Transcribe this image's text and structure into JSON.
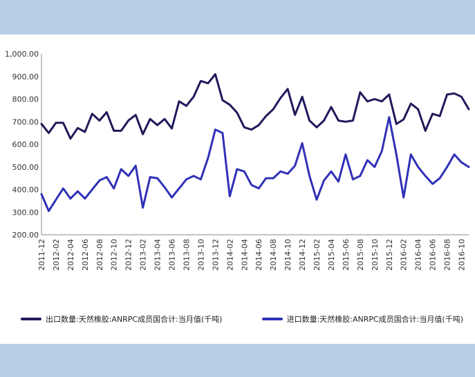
{
  "chart_data": {
    "type": "line",
    "title": "",
    "xlabel": "",
    "ylabel": "",
    "ylim": [
      200,
      1000
    ],
    "yticks": [
      "1,000.00",
      "900.00",
      "800.00",
      "700.00",
      "600.00",
      "500.00",
      "400.00",
      "300.00",
      "200.00"
    ],
    "ytick_values": [
      1000,
      900,
      800,
      700,
      600,
      500,
      400,
      300,
      200
    ],
    "x": [
      "2011-12",
      "2012-01",
      "2012-02",
      "2012-03",
      "2012-04",
      "2012-05",
      "2012-06",
      "2012-07",
      "2012-08",
      "2012-09",
      "2012-10",
      "2012-11",
      "2012-12",
      "2013-01",
      "2013-02",
      "2013-03",
      "2013-04",
      "2013-05",
      "2013-06",
      "2013-07",
      "2013-08",
      "2013-09",
      "2013-10",
      "2013-11",
      "2013-12",
      "2014-01",
      "2014-02",
      "2014-03",
      "2014-04",
      "2014-05",
      "2014-06",
      "2014-07",
      "2014-08",
      "2014-09",
      "2014-10",
      "2014-11",
      "2014-12",
      "2015-01",
      "2015-02",
      "2015-03",
      "2015-04",
      "2015-05",
      "2015-06",
      "2015-07",
      "2015-08",
      "2015-09",
      "2015-10",
      "2015-11",
      "2015-12",
      "2016-01",
      "2016-02",
      "2016-03",
      "2016-04",
      "2016-05",
      "2016-06",
      "2016-07",
      "2016-08",
      "2016-09",
      "2016-10",
      "2016-11"
    ],
    "xticks": [
      "2011-12",
      "2012-02",
      "2012-04",
      "2012-06",
      "2012-08",
      "2012-10",
      "2012-12",
      "2013-02",
      "2013-04",
      "2013-06",
      "2013-08",
      "2013-10",
      "2013-12",
      "2014-02",
      "2014-04",
      "2014-06",
      "2014-08",
      "2014-10",
      "2014-12",
      "2015-02",
      "2015-04",
      "2015-06",
      "2015-08",
      "2015-10",
      "2015-12",
      "2016-02",
      "2016-04",
      "2016-06",
      "2016-08",
      "2016-10"
    ],
    "series": [
      {
        "name": "出口数量:天然橡胶:ANRPC成员国合计:当月值(千吨)",
        "color": "#1f1a5a",
        "values": [
          690,
          650,
          695,
          695,
          625,
          672,
          655,
          735,
          705,
          742,
          660,
          660,
          705,
          730,
          645,
          712,
          685,
          712,
          670,
          790,
          770,
          810,
          880,
          870,
          910,
          795,
          775,
          740,
          675,
          665,
          685,
          725,
          755,
          805,
          845,
          730,
          810,
          705,
          675,
          705,
          765,
          705,
          700,
          705,
          830,
          790,
          800,
          790,
          820,
          690,
          710,
          780,
          755,
          660,
          735,
          725,
          820,
          825,
          810,
          755
        ]
      },
      {
        "name": "进口数量:天然橡胶:ANRPC成员国合计:当月值(千吨)",
        "color": "#3030b8",
        "values": [
          380,
          305,
          355,
          405,
          360,
          392,
          360,
          400,
          440,
          455,
          405,
          490,
          460,
          505,
          320,
          455,
          450,
          410,
          365,
          405,
          445,
          460,
          445,
          540,
          665,
          650,
          370,
          490,
          480,
          420,
          405,
          450,
          450,
          480,
          470,
          505,
          605,
          460,
          355,
          440,
          480,
          435,
          555,
          445,
          460,
          530,
          500,
          570,
          720,
          555,
          365,
          555,
          500,
          460,
          425,
          450,
          500,
          555,
          520,
          500
        ]
      }
    ]
  }
}
